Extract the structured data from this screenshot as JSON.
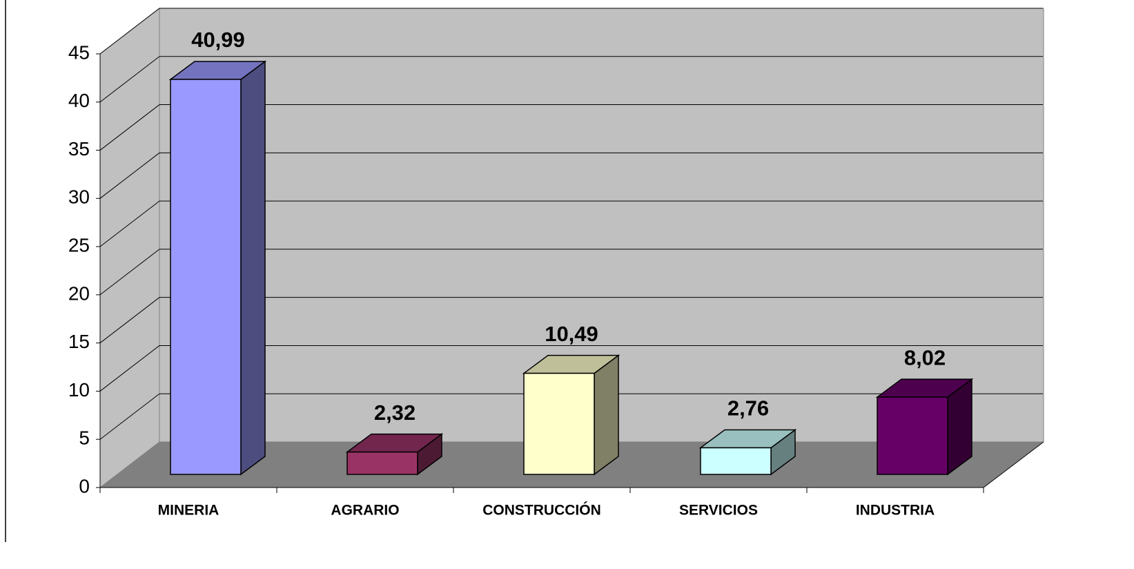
{
  "chart_data": {
    "type": "bar3d",
    "categories": [
      "MINERIA",
      "AGRARIO",
      "CONSTRUCCIÓN",
      "SERVICIOS",
      "INDUSTRIA"
    ],
    "values": [
      40.99,
      2.32,
      10.49,
      2.76,
      8.02
    ],
    "value_labels": [
      "40,99",
      "2,32",
      "10,49",
      "2,76",
      "8,02"
    ],
    "colors": [
      "#9999ff",
      "#993366",
      "#ffffcc",
      "#ccffff",
      "#660066"
    ],
    "ylim": [
      0,
      45
    ],
    "yticks": [
      0,
      5,
      10,
      15,
      20,
      25,
      30,
      35,
      40,
      45
    ],
    "grid": true
  }
}
